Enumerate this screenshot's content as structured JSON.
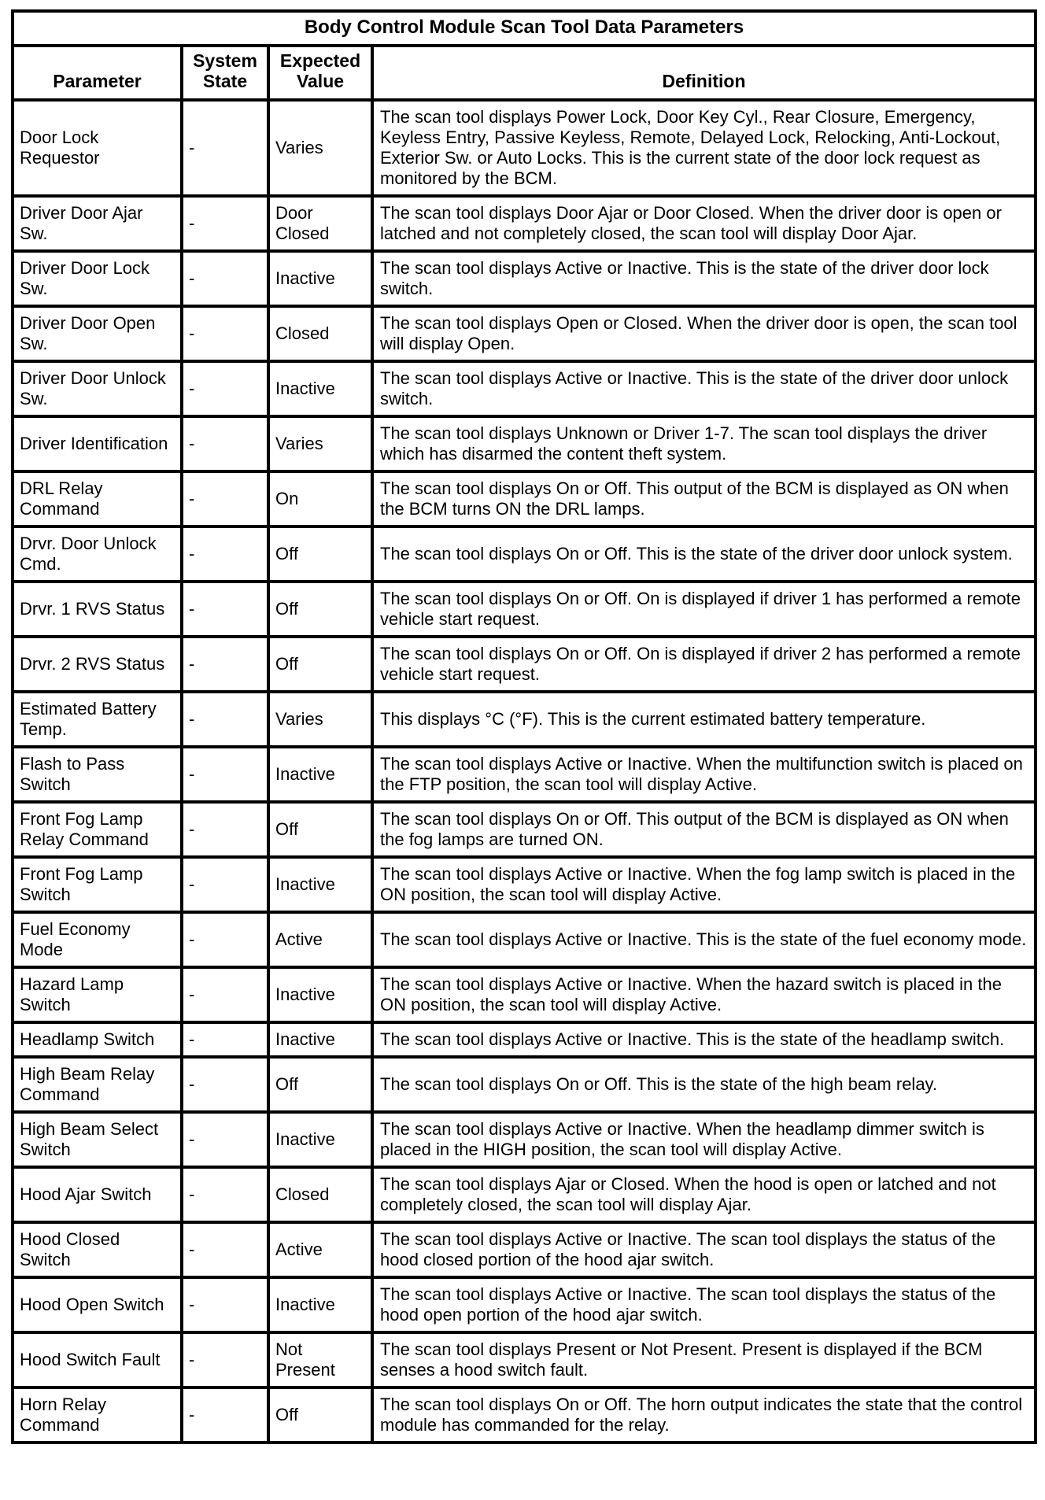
{
  "document": {
    "title": "Body Control Module Scan Tool Data Parameters",
    "columns": {
      "parameter": "Parameter",
      "system_state": "System State",
      "expected_value": "Expected Value",
      "definition": "Definition"
    },
    "rows": [
      {
        "parameter": "Door Lock Requestor",
        "system_state": "-",
        "expected_value": "Varies",
        "definition": "The scan tool displays Power Lock, Door Key Cyl., Rear Closure, Emergency, Keyless Entry, Passive Keyless, Remote, Delayed Lock, Relocking, Anti-Lockout, Exterior Sw. or Auto Locks. This is the current state of the door lock request as monitored by the BCM."
      },
      {
        "parameter": "Driver Door Ajar Sw.",
        "system_state": "-",
        "expected_value": "Door Closed",
        "definition": "The scan tool displays Door Ajar or Door Closed. When the driver door is open or latched and not completely closed, the scan tool will display Door Ajar."
      },
      {
        "parameter": "Driver Door Lock Sw.",
        "system_state": "-",
        "expected_value": "Inactive",
        "definition": "The scan tool displays Active or Inactive. This is the state of the driver door lock switch."
      },
      {
        "parameter": "Driver Door Open Sw.",
        "system_state": "-",
        "expected_value": "Closed",
        "definition": "The scan tool displays Open or Closed. When the driver door is open, the scan tool will display Open."
      },
      {
        "parameter": "Driver Door Unlock Sw.",
        "system_state": "-",
        "expected_value": "Inactive",
        "definition": "The scan tool displays Active or Inactive. This is the state of the driver door unlock switch."
      },
      {
        "parameter": "Driver Identification",
        "system_state": "-",
        "expected_value": "Varies",
        "definition": "The scan tool displays Unknown or Driver 1-7. The scan tool displays the driver which has disarmed the content theft system."
      },
      {
        "parameter": "DRL Relay Command",
        "system_state": "-",
        "expected_value": "On",
        "definition": "The scan tool displays On or Off. This output of the BCM is displayed as ON when the BCM turns ON the DRL lamps."
      },
      {
        "parameter": "Drvr. Door Unlock Cmd.",
        "system_state": "-",
        "expected_value": "Off",
        "definition": "The scan tool displays On or Off. This is the state of the driver door unlock system."
      },
      {
        "parameter": "Drvr. 1 RVS Status",
        "system_state": "-",
        "expected_value": "Off",
        "definition": "The scan tool displays On or Off. On is displayed if driver 1 has performed a remote vehicle start request."
      },
      {
        "parameter": "Drvr. 2 RVS Status",
        "system_state": "-",
        "expected_value": "Off",
        "definition": "The scan tool displays On or Off. On is displayed if driver 2 has performed a remote vehicle start request."
      },
      {
        "parameter": "Estimated Battery Temp.",
        "system_state": "-",
        "expected_value": "Varies",
        "definition": "This displays °C (°F). This is the current estimated battery temperature."
      },
      {
        "parameter": "Flash to Pass Switch",
        "system_state": "-",
        "expected_value": "Inactive",
        "definition": "The scan tool displays Active or Inactive. When the multifunction switch is placed on the FTP position, the scan tool will display Active."
      },
      {
        "parameter": "Front Fog Lamp Relay Command",
        "system_state": "-",
        "expected_value": "Off",
        "definition": "The scan tool displays On or Off. This output of the BCM is displayed as ON when the fog lamps are turned ON."
      },
      {
        "parameter": "Front Fog Lamp Switch",
        "system_state": "-",
        "expected_value": "Inactive",
        "definition": "The scan tool displays Active or Inactive. When the fog lamp switch is placed in the ON position, the scan tool will display Active."
      },
      {
        "parameter": "Fuel Economy Mode",
        "system_state": "-",
        "expected_value": "Active",
        "definition": "The scan tool displays Active or Inactive. This is the state of the fuel economy mode."
      },
      {
        "parameter": "Hazard Lamp Switch",
        "system_state": "-",
        "expected_value": "Inactive",
        "definition": "The scan tool displays Active or Inactive. When the hazard switch is placed in the ON position, the scan tool will display Active."
      },
      {
        "parameter": "Headlamp Switch",
        "system_state": "-",
        "expected_value": "Inactive",
        "definition": "The scan tool displays Active or Inactive. This is the state of the headlamp switch."
      },
      {
        "parameter": "High Beam Relay Command",
        "system_state": "-",
        "expected_value": "Off",
        "definition": "The scan tool displays On or Off. This is the state of the high beam relay."
      },
      {
        "parameter": "High Beam Select Switch",
        "system_state": "-",
        "expected_value": "Inactive",
        "definition": "The scan tool displays Active or Inactive. When the headlamp dimmer switch is placed in the HIGH position, the scan tool will display Active."
      },
      {
        "parameter": "Hood Ajar Switch",
        "system_state": "-",
        "expected_value": "Closed",
        "definition": "The scan tool displays Ajar or Closed. When the hood is open or latched and not completely closed, the scan tool will display Ajar."
      },
      {
        "parameter": "Hood Closed Switch",
        "system_state": "-",
        "expected_value": "Active",
        "definition": "The scan tool displays Active or Inactive. The scan tool displays the status of the hood closed portion of the hood ajar switch."
      },
      {
        "parameter": "Hood Open Switch",
        "system_state": "-",
        "expected_value": "Inactive",
        "definition": "The scan tool displays Active or Inactive. The scan tool displays the status of the hood open portion of the hood ajar switch."
      },
      {
        "parameter": "Hood Switch Fault",
        "system_state": "-",
        "expected_value": "Not Present",
        "definition": "The scan tool displays Present or Not Present. Present is displayed if the BCM senses a hood switch fault."
      },
      {
        "parameter": "Horn Relay Command",
        "system_state": "-",
        "expected_value": "Off",
        "definition": "The scan tool displays On or Off. The horn output indicates the state that the control module has commanded for the relay."
      }
    ]
  }
}
